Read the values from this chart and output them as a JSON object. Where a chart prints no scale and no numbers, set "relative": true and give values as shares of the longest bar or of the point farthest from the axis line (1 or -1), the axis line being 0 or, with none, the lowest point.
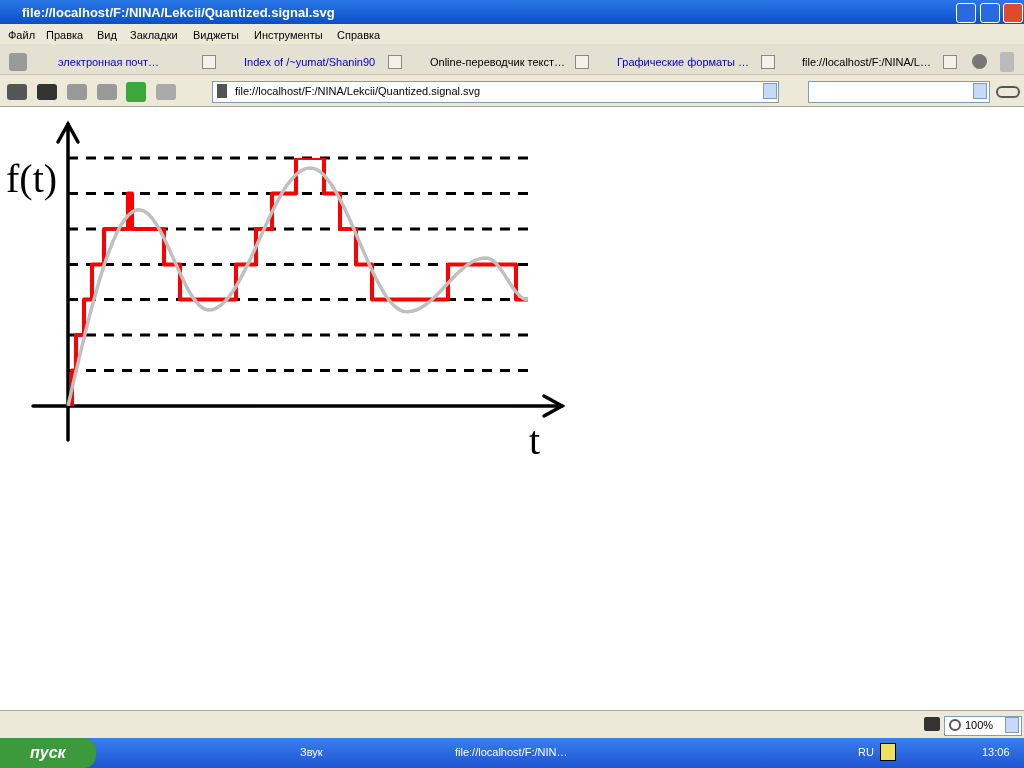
{
  "chart_data": {
    "type": "line",
    "xlabel": "t",
    "ylabel": "f(t)",
    "relative": true,
    "legend": false,
    "marker": "none",
    "categories": [
      null,
      null,
      null,
      null,
      null,
      null,
      null,
      null,
      null,
      null,
      null,
      null,
      null,
      null,
      null,
      null,
      null,
      null,
      null,
      null,
      null,
      null,
      null,
      null,
      null,
      null,
      null,
      null,
      null,
      null,
      null,
      null,
      null,
      null,
      null,
      null,
      null,
      null,
      null,
      null,
      null,
      null,
      null,
      null,
      null,
      null,
      null,
      null,
      null,
      null,
      null,
      null,
      null,
      null,
      null,
      null,
      null,
      null,
      null,
      null,
      null,
      null,
      null,
      null,
      null,
      null,
      null,
      null,
      null,
      null,
      null,
      null,
      null,
      null,
      null,
      null,
      null,
      null,
      null,
      null,
      null,
      null,
      null,
      null,
      null,
      null,
      null,
      null,
      null,
      null,
      null,
      null,
      null,
      null,
      null,
      null,
      null,
      null,
      null,
      null,
      null,
      null,
      null,
      null,
      null,
      null,
      null,
      null,
      null,
      null,
      null,
      null,
      null,
      null,
      null,
      null
    ],
    "series": [
      {
        "type": "line",
        "color": "#c0c0c0",
        "values": [
          0,
          0.07,
          0.139,
          0.208,
          0.274,
          0.339,
          0.401,
          0.459,
          0.515,
          0.566,
          0.612,
          0.654,
          0.691,
          0.723,
          0.748,
          0.768,
          0.782,
          0.79,
          0.791,
          0.786,
          0.775,
          0.758,
          0.735,
          0.708,
          0.677,
          0.643,
          0.607,
          0.571,
          0.536,
          0.502,
          0.47,
          0.443,
          0.421,
          0.403,
          0.392,
          0.387,
          0.388,
          0.394,
          0.404,
          0.418,
          0.436,
          0.457,
          0.482,
          0.51,
          0.541,
          0.573,
          0.607,
          0.642,
          0.678,
          0.713,
          0.748,
          0.782,
          0.814,
          0.844,
          0.872,
          0.896,
          0.916,
          0.933,
          0.946,
          0.955,
          0.959,
          0.959,
          0.955,
          0.945,
          0.931,
          0.912,
          0.889,
          0.863,
          0.834,
          0.801,
          0.767,
          0.731,
          0.693,
          0.656,
          0.619,
          0.582,
          0.547,
          0.514,
          0.484,
          0.456,
          0.432,
          0.413,
          0.398,
          0.387,
          0.381,
          0.38,
          0.382,
          0.387,
          0.394,
          0.404,
          0.416,
          0.429,
          0.445,
          0.461,
          0.478,
          0.495,
          0.512,
          0.529,
          0.544,
          0.558,
          0.571,
          0.581,
          0.589,
          0.594,
          0.597,
          0.596,
          0.589,
          0.575,
          0.555,
          0.532,
          0.507,
          0.482,
          0.46,
          0.443,
          0.432,
          0.429
        ]
      },
      {
        "type": "step",
        "color": "#ff0000",
        "values": [
          0,
          0,
          0.143,
          0.286,
          0.286,
          0.429,
          0.429,
          0.571,
          0.571,
          0.571,
          0.714,
          0.714,
          0.714,
          0.714,
          0.714,
          0.714,
          0.857,
          0.714,
          0.714,
          0.714,
          0.714,
          0.714,
          0.714,
          0.714,
          0.714,
          0.571,
          0.571,
          0.571,
          0.571,
          0.429,
          0.429,
          0.429,
          0.429,
          0.429,
          0.429,
          0.429,
          0.429,
          0.429,
          0.429,
          0.429,
          0.429,
          0.429,
          0.429,
          0.571,
          0.571,
          0.571,
          0.571,
          0.571,
          0.714,
          0.714,
          0.714,
          0.714,
          0.857,
          0.857,
          0.857,
          0.857,
          0.857,
          0.857,
          1,
          1,
          1,
          1,
          1,
          1,
          1,
          0.857,
          0.857,
          0.857,
          0.857,
          0.714,
          0.714,
          0.714,
          0.714,
          0.571,
          0.571,
          0.571,
          0.571,
          0.429,
          0.429,
          0.429,
          0.429,
          0.429,
          0.429,
          0.429,
          0.429,
          0.429,
          0.429,
          0.429,
          0.429,
          0.429,
          0.429,
          0.429,
          0.429,
          0.429,
          0.429,
          0.429,
          0.571,
          0.571,
          0.571,
          0.571,
          0.571,
          0.571,
          0.571,
          0.571,
          0.571,
          0.571,
          0.571,
          0.571,
          0.571,
          0.571,
          0.571,
          0.571,
          0.571,
          0.429,
          0.429,
          0.429
        ]
      }
    ],
    "ref_lines": [
      {
        "axis": "y",
        "value": 0.143,
        "color": "#000000",
        "line_style": "dashed"
      },
      {
        "axis": "y",
        "value": 0.286,
        "color": "#000000",
        "line_style": "dashed"
      },
      {
        "axis": "y",
        "value": 0.429,
        "color": "#000000",
        "line_style": "dashed"
      },
      {
        "axis": "y",
        "value": 0.571,
        "color": "#000000",
        "line_style": "dashed"
      },
      {
        "axis": "y",
        "value": 0.714,
        "color": "#000000",
        "line_style": "dashed"
      },
      {
        "axis": "y",
        "value": 0.857,
        "color": "#000000",
        "line_style": "dashed"
      },
      {
        "axis": "y",
        "value": 1,
        "color": "#000000",
        "line_style": "dashed"
      }
    ],
    "annotations": [
      "file://localhost/F:/NINA/Lekcii/Quantized.signal.svg",
      "Файл",
      "Правка",
      "Вид",
      "Закладки",
      "Виджеты",
      "Инструменты",
      "Справка",
      "электронная почт…",
      "Index of /~yumat/Shanin90",
      "Online-переводчик текст…",
      "Графические форматы …",
      "file://localhost/F:/NINA/L…",
      "file://localhost/F:/NINA/Lekcii/Quantized.signal.svg",
      "100%",
      "пуск",
      "Звук",
      "file://localhost/F:/NIN…",
      "RU",
      "13:06"
    ]
  }
}
